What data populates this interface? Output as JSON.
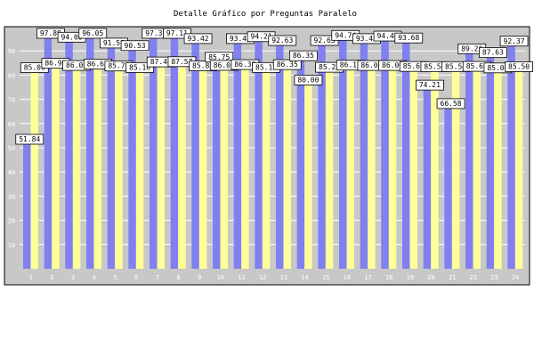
{
  "chart_data": {
    "type": "bar",
    "title": "Detalle Gráfico por Preguntas Paralelo",
    "xlabel": "",
    "ylabel": "",
    "ylim": [
      0,
      100
    ],
    "yticks": [
      10,
      20,
      30,
      40,
      50,
      60,
      70,
      80,
      90
    ],
    "grid": true,
    "legend": "none",
    "categories": [
      "1",
      "2",
      "3",
      "4",
      "5",
      "6",
      "7",
      "8",
      "9",
      "10",
      "11",
      "12",
      "13",
      "14",
      "15",
      "16",
      "17",
      "18",
      "19",
      "20",
      "21",
      "22",
      "23",
      "24"
    ],
    "series": [
      {
        "color": "#8080f0",
        "values": [
          51.84,
          97.89,
          94.0,
          96.05,
          91.58,
          90.53,
          97.37,
          97.11,
          93.42,
          85.75,
          93.42,
          94.21,
          92.63,
          86.35,
          92.63,
          94.74,
          93.42,
          94.47,
          93.68,
          74.21,
          66.58,
          89.21,
          87.63,
          92.37
        ]
      },
      {
        "color": "#ffff99",
        "values": [
          85.09,
          86.9,
          86.0,
          86.62,
          85.77,
          85.16,
          87.46,
          87.57,
          85.83,
          86.05,
          86.36,
          85.17,
          86.35,
          80.0,
          85.25,
          86.13,
          86.0,
          86.0,
          85.6,
          85.54,
          85.54,
          85.63,
          85.0,
          85.5
        ]
      }
    ],
    "colors": {
      "page": "#ffffff",
      "plot_area": "#c8c8c8",
      "grid": "#ffffff",
      "axis_text": "#ffffff",
      "label_box": "#ffffff",
      "label_text": "#000000"
    }
  }
}
